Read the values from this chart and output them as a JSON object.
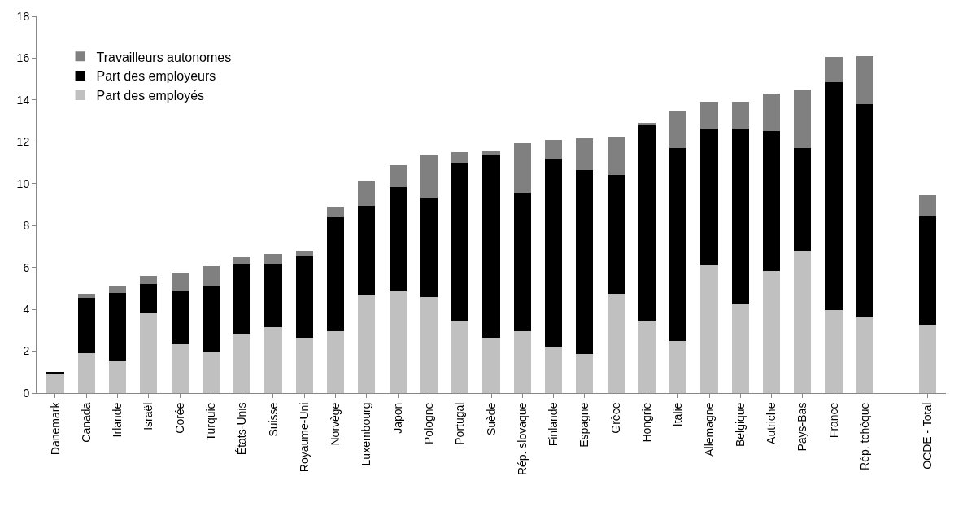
{
  "chart_data": {
    "type": "bar",
    "stacked": true,
    "legend": "top left",
    "grid": false,
    "categories": [
      "Danemark",
      "Canada",
      "Irlande",
      "Israël",
      "Corée",
      "Turquie",
      "États-Unis",
      "Suisse",
      "Royaume-Uni",
      "Norvège",
      "Luxembourg",
      "Japon",
      "Pologne",
      "Portugal",
      "Suède",
      "Rép. slovaque",
      "Finlande",
      "Espagne",
      "Grèce",
      "Hongrie",
      "Italie",
      "Allemagne",
      "Belgique",
      "Autriche",
      "Pays-Bas",
      "France",
      "Rép. tchèque",
      null,
      "OCDE - Total"
    ],
    "ylim": [
      0,
      18
    ],
    "yticks": [
      0,
      2,
      4,
      6,
      8,
      10,
      12,
      14,
      16,
      18
    ],
    "series": [
      {
        "name": "Part des employés",
        "color": "#c0c0c0",
        "values": [
          0.95,
          1.9,
          1.55,
          3.85,
          2.35,
          2.0,
          2.85,
          3.15,
          2.65,
          2.95,
          4.65,
          4.85,
          4.6,
          3.45,
          2.65,
          2.95,
          2.2,
          1.85,
          4.75,
          3.45,
          2.5,
          6.1,
          4.25,
          5.85,
          6.8,
          3.95,
          3.6,
          null,
          3.25
        ]
      },
      {
        "name": "Part des employeurs",
        "color": "#000000",
        "values": [
          0.05,
          2.65,
          3.25,
          1.35,
          2.55,
          3.1,
          3.3,
          3.05,
          3.9,
          5.45,
          4.3,
          5.0,
          4.75,
          7.55,
          8.7,
          6.6,
          9.0,
          8.8,
          5.65,
          9.35,
          9.2,
          6.55,
          8.4,
          6.65,
          4.9,
          10.9,
          10.2,
          null,
          5.2
        ]
      },
      {
        "name": "Travailleurs autonomes",
        "color": "#808080",
        "values": [
          0,
          0.2,
          0.3,
          0.4,
          0.85,
          0.95,
          0.35,
          0.45,
          0.25,
          0.5,
          1.15,
          1.05,
          2.0,
          0.5,
          0.2,
          2.4,
          0.9,
          1.5,
          1.85,
          0.1,
          1.8,
          1.25,
          1.25,
          1.8,
          2.8,
          1.2,
          2.3,
          null,
          1.0
        ]
      }
    ]
  }
}
